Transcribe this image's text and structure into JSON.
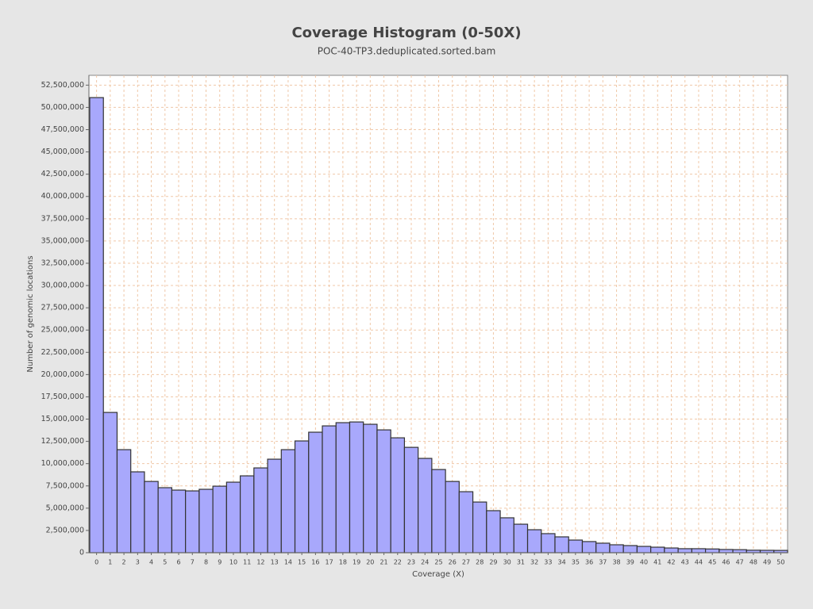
{
  "chart_data": {
    "type": "bar",
    "title": "Coverage Histogram (0-50X)",
    "subtitle": "POC-40-TP3.deduplicated.sorted.bam",
    "x_label": "Coverage (X)",
    "y_label": "Number of genomic locations",
    "categories": [
      0,
      1,
      2,
      3,
      4,
      5,
      6,
      7,
      8,
      9,
      10,
      11,
      12,
      13,
      14,
      15,
      16,
      17,
      18,
      19,
      20,
      21,
      22,
      23,
      24,
      25,
      26,
      27,
      28,
      29,
      30,
      31,
      32,
      33,
      34,
      35,
      36,
      37,
      38,
      39,
      40,
      41,
      42,
      43,
      44,
      45,
      46,
      47,
      48,
      49,
      50
    ],
    "values": [
      51100000,
      15750000,
      11570000,
      9080000,
      8000000,
      7300000,
      7030000,
      6940000,
      7120000,
      7470000,
      7920000,
      8630000,
      9520000,
      10500000,
      11570000,
      12550000,
      13530000,
      14240000,
      14600000,
      14680000,
      14420000,
      13790000,
      12900000,
      11830000,
      10590000,
      9340000,
      8000000,
      6850000,
      5690000,
      4720000,
      3920000,
      3200000,
      2580000,
      2140000,
      1780000,
      1420000,
      1250000,
      1070000,
      890000,
      800000,
      710000,
      620000,
      530000,
      450000,
      450000,
      420000,
      360000,
      340000,
      280000,
      270000,
      260000
    ],
    "color": "#a8a8fc",
    "ylim": [
      0,
      53600000
    ],
    "yticks": [
      0,
      {
        "value": 2500000,
        "label": "2,500,000"
      },
      {
        "value": 5000000,
        "label": "5,000,000"
      },
      {
        "value": 7500000,
        "label": "7,500,000"
      },
      {
        "value": 10000000,
        "label": "10,000,000"
      },
      {
        "value": 12500000,
        "label": "12,500,000"
      },
      {
        "value": 15000000,
        "label": "15,000,000"
      },
      {
        "value": 17500000,
        "label": "17,500,000"
      },
      {
        "value": 20000000,
        "label": "20,000,000"
      },
      {
        "value": 22500000,
        "label": "22,500,000"
      },
      {
        "value": 25000000,
        "label": "25,000,000"
      },
      {
        "value": 27500000,
        "label": "27,500,000"
      },
      {
        "value": 30000000,
        "label": "30,000,000"
      },
      {
        "value": 32500000,
        "label": "32,500,000"
      },
      {
        "value": 35000000,
        "label": "35,000,000"
      },
      {
        "value": 37500000,
        "label": "37,500,000"
      },
      {
        "value": 40000000,
        "label": "40,000,000"
      },
      {
        "value": 42500000,
        "label": "42,500,000"
      },
      {
        "value": 45000000,
        "label": "45,000,000"
      },
      {
        "value": 47500000,
        "label": "47,500,000"
      },
      {
        "value": 50000000,
        "label": "50,000,000"
      },
      {
        "value": 52500000,
        "label": "52,500,000"
      }
    ],
    "grid": true
  }
}
